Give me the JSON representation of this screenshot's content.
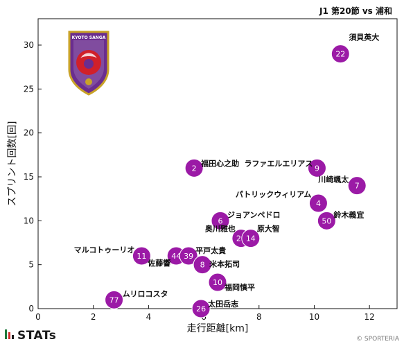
{
  "header": {
    "title": "J1 第20節 vs 浦和"
  },
  "footer": {
    "brand": "STATs",
    "credit": "© SPORTERIA"
  },
  "logo": {
    "text": "KYOTO SANGA"
  },
  "colors": {
    "marker": "#9b1aa6",
    "crest_purple": "#6a2d8f",
    "crest_red": "#d0202a",
    "crest_gold": "#c9a227",
    "brand_green": "#1e7a3c",
    "brand_red": "#d22d2d"
  },
  "chart_data": {
    "type": "scatter",
    "xlabel": "走行距離[km]",
    "ylabel": "スプリント回数[回]",
    "xlim": [
      0,
      13
    ],
    "ylim": [
      0,
      33
    ],
    "xticks": [
      0,
      2,
      4,
      6,
      8,
      10,
      12
    ],
    "yticks": [
      0,
      5,
      10,
      15,
      20,
      25,
      30
    ],
    "grid": false,
    "points": [
      {
        "number": "22",
        "name": "須貝英大",
        "x": 10.95,
        "y": 29
      },
      {
        "number": "2",
        "name": "福田心之助",
        "x": 5.65,
        "y": 16
      },
      {
        "number": "9",
        "name": "ラファエルエリアス",
        "x": 10.1,
        "y": 16
      },
      {
        "number": "7",
        "name": "川崎颯太",
        "x": 11.55,
        "y": 14
      },
      {
        "number": "4",
        "name": "パトリックウィリアム",
        "x": 10.15,
        "y": 12
      },
      {
        "number": "50",
        "name": "鈴木義宜",
        "x": 10.45,
        "y": 10
      },
      {
        "number": "6",
        "name": "ジョアンペドロ",
        "x": 6.6,
        "y": 10
      },
      {
        "number": "29",
        "name": "奥川雅也",
        "x": 7.35,
        "y": 8
      },
      {
        "number": "14",
        "name": "原大智",
        "x": 7.7,
        "y": 8
      },
      {
        "number": "11",
        "name": "マルコトゥーリオ",
        "x": 3.75,
        "y": 6
      },
      {
        "number": "44",
        "name": "佐藤響",
        "x": 5.0,
        "y": 6
      },
      {
        "number": "39",
        "name": "平戸太貴",
        "x": 5.45,
        "y": 6
      },
      {
        "number": "8",
        "name": "米本拓司",
        "x": 5.95,
        "y": 5
      },
      {
        "number": "10",
        "name": "福岡慎平",
        "x": 6.5,
        "y": 3
      },
      {
        "number": "77",
        "name": "ムリロコスタ",
        "x": 2.75,
        "y": 1
      },
      {
        "number": "26",
        "name": "太田岳志",
        "x": 5.9,
        "y": 0
      }
    ]
  }
}
